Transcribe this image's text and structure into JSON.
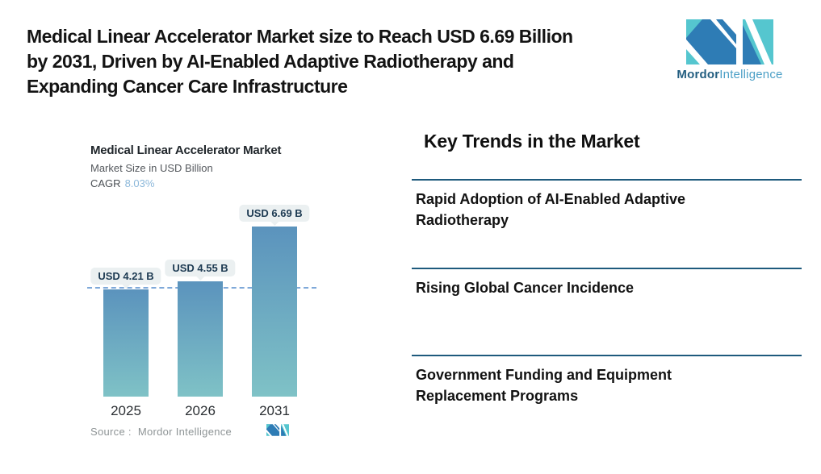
{
  "header": {
    "title_lines": [
      "Medical Linear Accelerator Market size to Reach USD 6.69 Billion",
      "by 2031, Driven by AI-Enabled Adaptive Radiotherapy and",
      "Expanding Cancer Care Infrastructure"
    ],
    "logo": {
      "brand_bold": "Mordor",
      "brand_light": "Intelligence"
    }
  },
  "chart": {
    "title": "Medical Linear Accelerator Market",
    "subtitle": "Market Size in USD Billion",
    "cagr_label": "CAGR",
    "cagr_value": "8.03%",
    "source_label": "Source :",
    "source_value": "Mordor Intelligence"
  },
  "chart_data": {
    "type": "bar",
    "title": "Medical Linear Accelerator Market",
    "ylabel": "Market Size in USD Billion",
    "categories": [
      "2025",
      "2026",
      "2031"
    ],
    "values": [
      4.21,
      4.55,
      6.69
    ],
    "value_labels": [
      "USD 4.21 B",
      "USD 4.55 B",
      "USD 6.69 B"
    ],
    "cagr_percent": 8.03,
    "reference_line_value": 4.21,
    "ylim": [
      0,
      7
    ],
    "grid": false,
    "legend": false
  },
  "trends": {
    "heading": "Key Trends in the Market",
    "items": [
      "Rapid Adoption of AI-Enabled Adaptive Radiotherapy",
      "Rising Global Cancer Incidence",
      "Government Funding and Equipment Replacement Programs"
    ]
  },
  "colors": {
    "bar_top": "#5b93bd",
    "bar_bottom": "#7fc2c6",
    "dashed_line": "#7fa9d9",
    "tooltip_bg": "#ebf0f1",
    "tooltip_text": "#1d3a52",
    "divider": "#1e5a7d",
    "cagr_value": "#8cb8da",
    "logo_blue": "#2e7cb5",
    "logo_teal": "#55c6cf",
    "wordmark_dark": "#235e80",
    "wordmark_light": "#4b9fc6"
  }
}
